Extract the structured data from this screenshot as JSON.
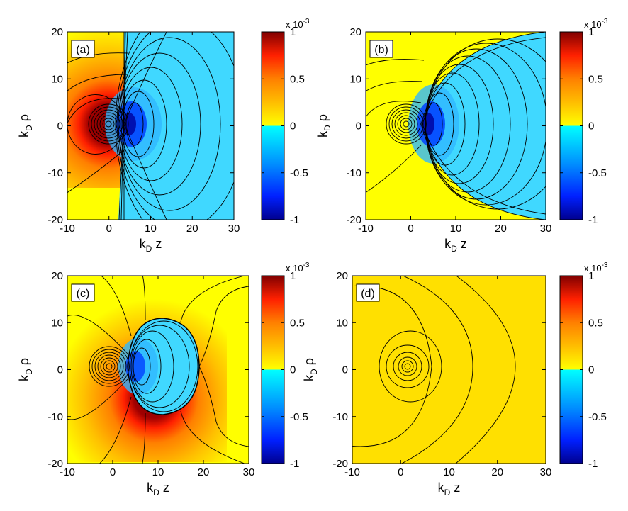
{
  "figure": {
    "colorbar_exponent": {
      "base": "x 10",
      "power": "-3"
    },
    "colorbar_ticks": [
      {
        "label": "1",
        "value": 1
      },
      {
        "label": "0.5",
        "value": 0.5
      },
      {
        "label": "0",
        "value": 0
      },
      {
        "label": "-0.5",
        "value": -0.5
      },
      {
        "label": "-1",
        "value": -1
      }
    ],
    "x_ticks": [
      {
        "label": "-10",
        "value": -10
      },
      {
        "label": "0",
        "value": 0
      },
      {
        "label": "10",
        "value": 10
      },
      {
        "label": "20",
        "value": 20
      },
      {
        "label": "30",
        "value": 30
      }
    ],
    "y_ticks": [
      {
        "label": "20",
        "value": 20
      },
      {
        "label": "10",
        "value": 10
      },
      {
        "label": "0",
        "value": 0
      },
      {
        "label": "-10",
        "value": -10
      },
      {
        "label": "-20",
        "value": -20
      }
    ]
  },
  "chart_data": [
    {
      "type": "heatmap",
      "panel_label": "(a)",
      "xlabel": "k_D z",
      "ylabel": "k_D ρ",
      "xlim": [
        -10,
        30
      ],
      "ylim": [
        -20,
        20
      ],
      "clim": [
        -1,
        1
      ],
      "colorbar_scale": "x 10^-3",
      "positive_lobe_center": [
        0,
        0
      ],
      "negative_lobe_center": [
        4.5,
        0
      ],
      "negative_region_boundary": "near-vertical line close to z = 0",
      "contour_lines": true
    },
    {
      "type": "heatmap",
      "panel_label": "(b)",
      "xlabel": "k_D z",
      "ylabel": "k_D ρ",
      "xlim": [
        -10,
        30
      ],
      "ylim": [
        -20,
        20
      ],
      "clim": [
        -1,
        1
      ],
      "colorbar_scale": "x 10^-3",
      "positive_lobe_center": [
        0,
        0
      ],
      "negative_lobe_center": [
        4.5,
        0
      ],
      "negative_region_boundary": "cone opening to the right from about z = 4",
      "contour_lines": true
    },
    {
      "type": "heatmap",
      "panel_label": "(c)",
      "xlabel": "k_D z",
      "ylabel": "k_D ρ",
      "xlim": [
        -10,
        30
      ],
      "ylim": [
        -20,
        20
      ],
      "clim": [
        -1,
        1
      ],
      "colorbar_scale": "x 10^-3",
      "positive_lobe_center": [
        0,
        0
      ],
      "negative_lobe_center": [
        5,
        0
      ],
      "negative_region_boundary": "closed bubble, z from about 3 to 17, rho from about -9 to 9",
      "contour_lines": true
    },
    {
      "type": "heatmap",
      "panel_label": "(d)",
      "xlabel": "k_D z",
      "ylabel": "k_D ρ",
      "xlim": [
        -10,
        30
      ],
      "ylim": [
        -20,
        20
      ],
      "clim": [
        -1,
        1
      ],
      "colorbar_scale": "x 10^-3",
      "positive_lobe_center": [
        0,
        0
      ],
      "negative_region_boundary": "none",
      "contour_lines": true
    }
  ]
}
